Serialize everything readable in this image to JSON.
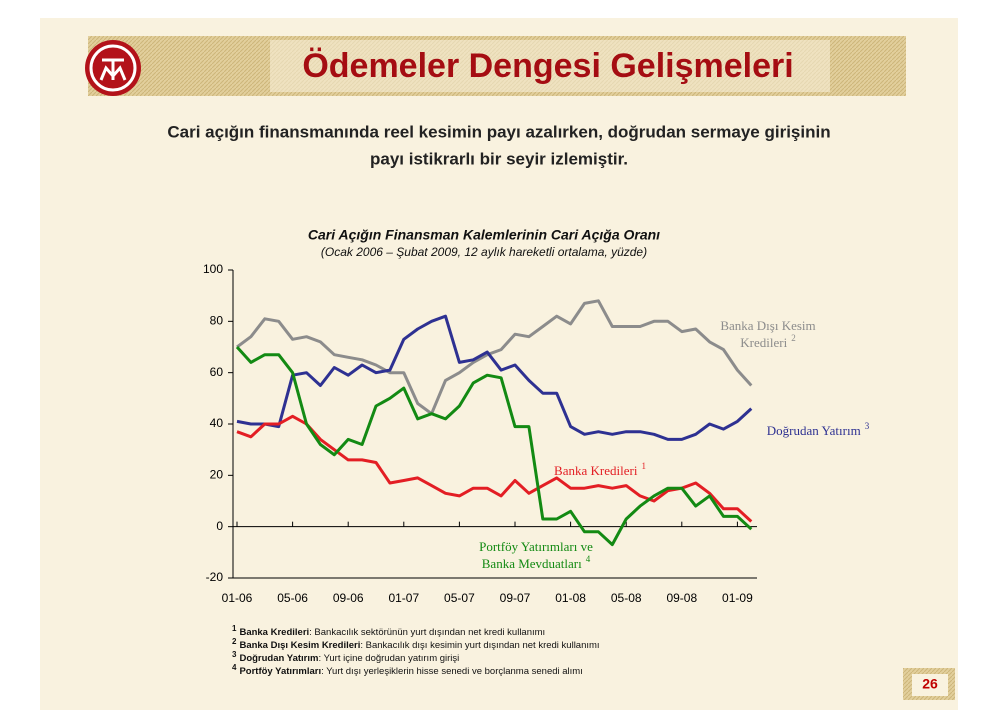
{
  "header": {
    "title": "Ödemeler Dengesi Gelişmeleri",
    "subtitle": [
      "Cari açığın finansmanında reel kesimin payı azalırken, doğrudan sermaye girişinin",
      "payı istikrarlı bir seyir izlemiştir."
    ]
  },
  "chart_data": {
    "type": "line",
    "title": "Cari Açığın Finansman Kalemlerinin Cari Açığa Oranı",
    "subtitle": "(Ocak 2006  – Şubat 2009, 12 aylık hareketli ortalama, yüzde)",
    "categories": [
      "01-06",
      null,
      null,
      null,
      "05-06",
      null,
      null,
      null,
      "09-06",
      null,
      null,
      null,
      "01-07",
      null,
      null,
      null,
      "05-07",
      null,
      null,
      null,
      "09-07",
      null,
      null,
      null,
      "01-08",
      null,
      null,
      null,
      "05-08",
      null,
      null,
      null,
      "09-08",
      null,
      null,
      null,
      "01-09",
      null
    ],
    "ylim": [
      -20,
      100
    ],
    "yticks": [
      -20,
      0,
      20,
      40,
      60,
      80,
      100
    ],
    "series": [
      {
        "name": [
          "Banka Dışı Kesim",
          "Kredileri"
        ],
        "note": "2",
        "color": "#8c8c8c",
        "values": [
          70,
          74,
          81,
          80,
          73,
          74,
          72,
          67,
          66,
          65,
          63,
          60,
          60,
          48,
          44,
          57,
          60,
          64,
          67,
          69,
          75,
          74,
          78,
          82,
          79,
          87,
          88,
          78,
          78,
          78,
          80,
          80,
          76,
          77,
          72,
          69,
          61,
          55
        ]
      },
      {
        "name": [
          "Doğrudan Yatırım"
        ],
        "note": "3",
        "color": "#2e3192",
        "values": [
          41,
          40,
          40,
          39,
          59,
          60,
          55,
          62,
          59,
          63,
          60,
          61,
          73,
          77,
          80,
          82,
          64,
          65,
          68,
          61,
          63,
          57,
          52,
          52,
          39,
          36,
          37,
          36,
          37,
          37,
          36,
          34,
          34,
          36,
          40,
          38,
          41,
          46
        ]
      },
      {
        "name": [
          "Banka Kredileri"
        ],
        "note": "1",
        "color": "#e31e24",
        "values": [
          37,
          35,
          40,
          40,
          43,
          40,
          34,
          30,
          26,
          26,
          25,
          17,
          18,
          19,
          16,
          13,
          12,
          15,
          15,
          12,
          18,
          13,
          16,
          19,
          15,
          15,
          16,
          15,
          16,
          12,
          10,
          14,
          15,
          17,
          13,
          7,
          7,
          2
        ]
      },
      {
        "name": [
          "Portföy Yatırımları ve",
          "Banka Mevduatları"
        ],
        "note": "4",
        "color": "#138a13",
        "values": [
          70,
          64,
          67,
          67,
          60,
          40,
          32,
          28,
          34,
          32,
          47,
          50,
          54,
          42,
          44,
          42,
          47,
          56,
          59,
          58,
          39,
          39,
          3,
          3,
          6,
          -2,
          -2,
          -7,
          3,
          8,
          12,
          15,
          15,
          8,
          12,
          4,
          4,
          -1
        ]
      }
    ]
  },
  "footnotes": [
    {
      "num": "1",
      "term": "Banka Kredileri",
      "text": ": Bankacılık sektörünün yurt dışından net kredi kullanımı"
    },
    {
      "num": "2",
      "term": "Banka Dışı Kesim Kredileri",
      "text": ": Bankacılık dışı kesimin yurt dışından net kredi kullanımı"
    },
    {
      "num": "3",
      "term": "Doğrudan Yatırım",
      "text": ": Yurt içine doğrudan yatırım girişi"
    },
    {
      "num": "4",
      "term": "Portföy Yatırımları",
      "text": ": Yurt dışı yerleşiklerin hisse senedi ve borçlanma senedi alımı"
    }
  ],
  "page_number": "26"
}
